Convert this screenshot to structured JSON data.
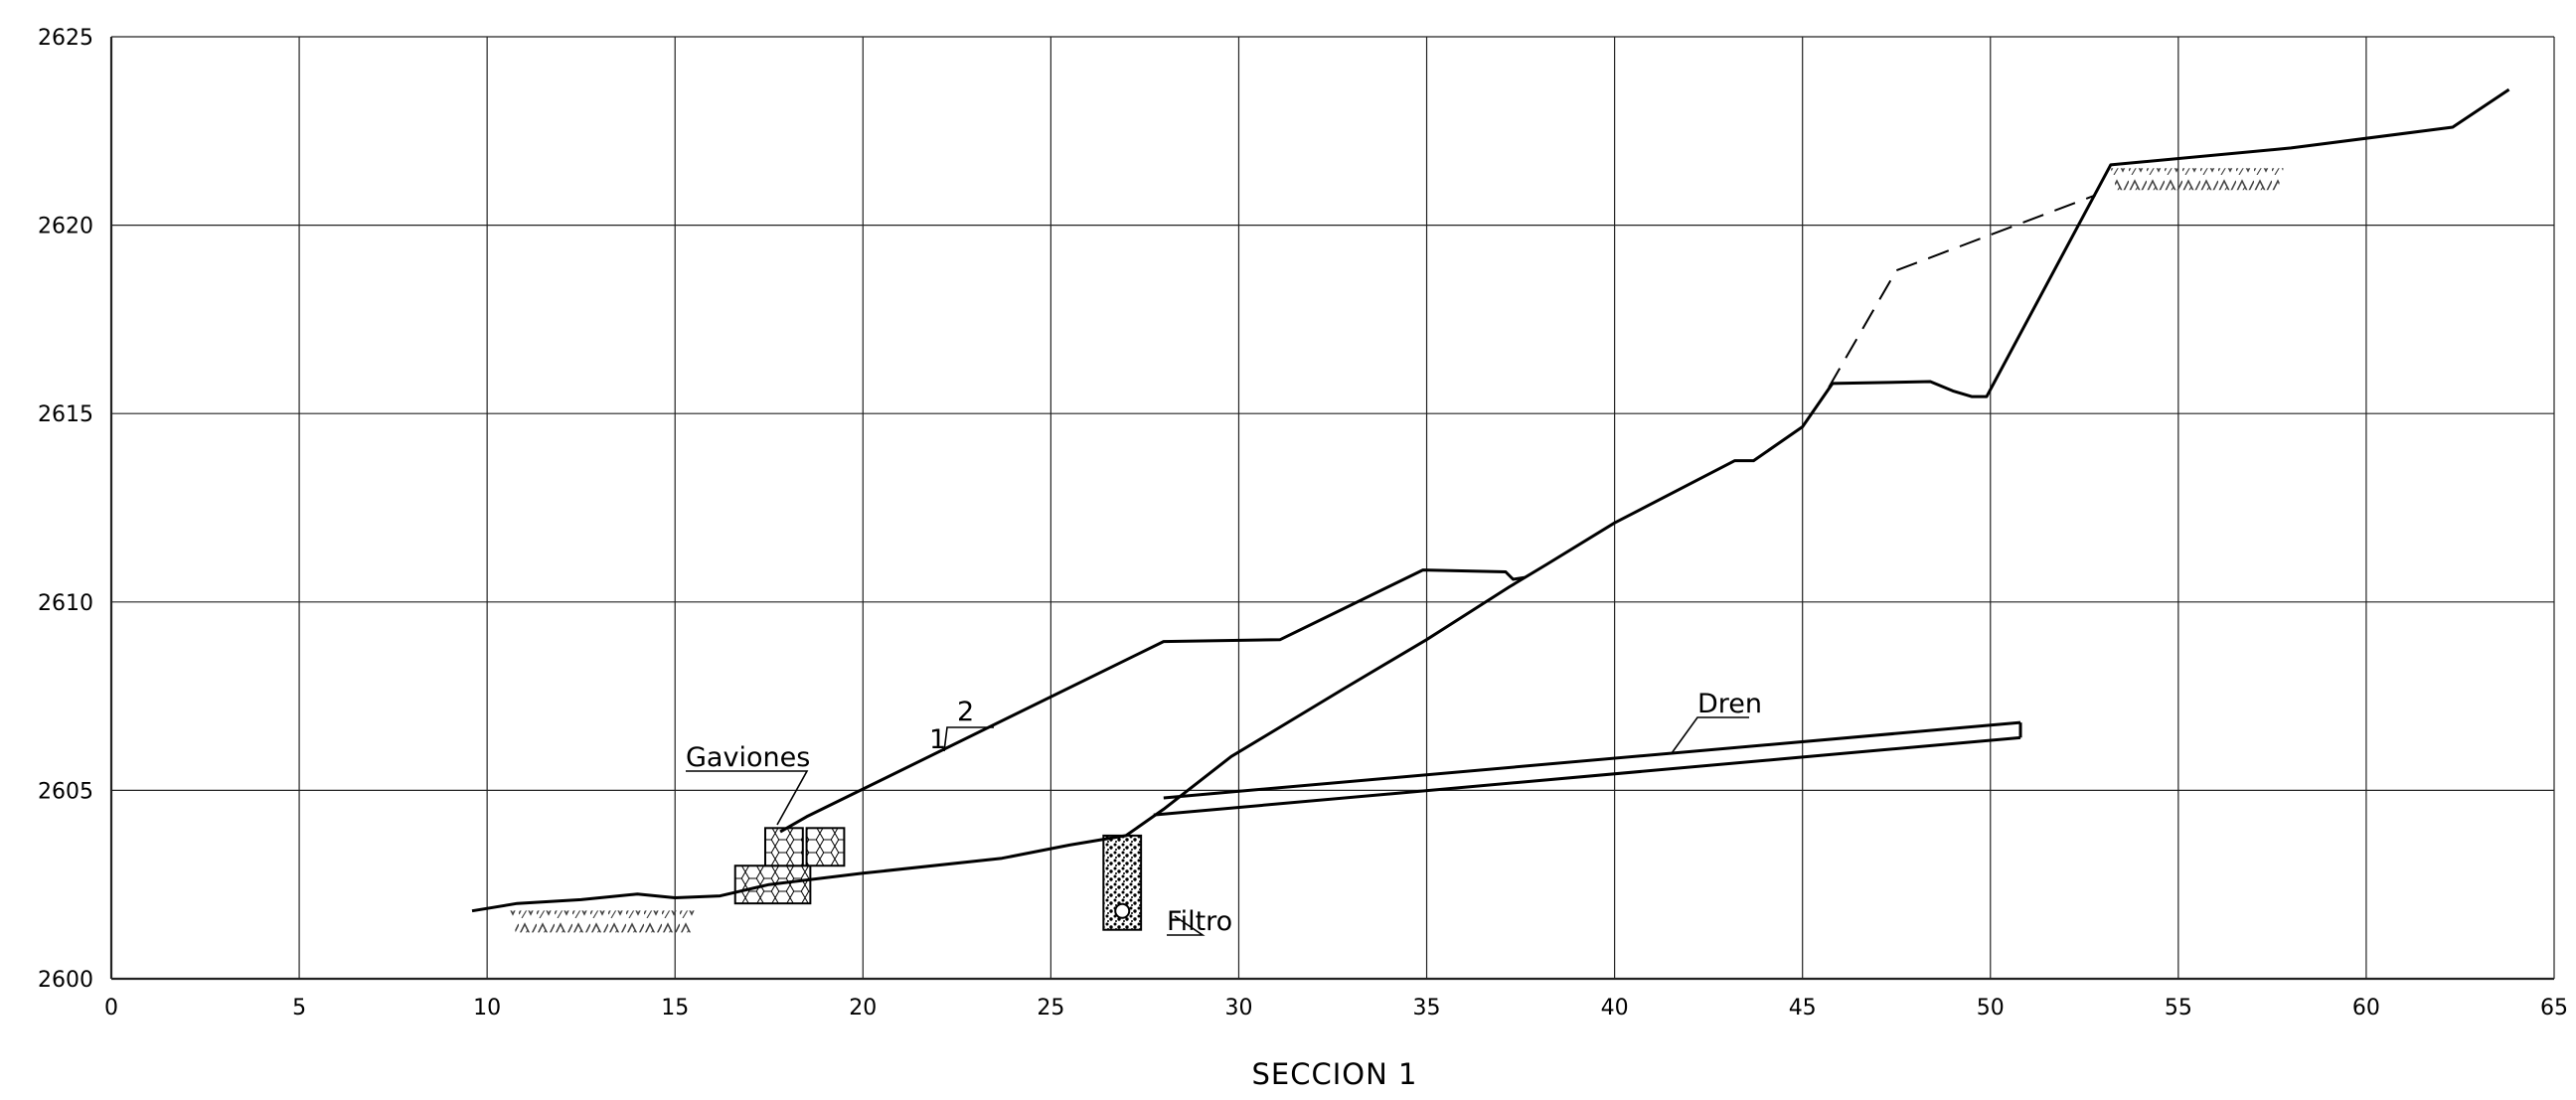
{
  "drawing": {
    "title": "SECCION  1",
    "x_axis": {
      "min": 0,
      "max": 65,
      "step": 5,
      "tick_labels": [
        "0",
        "5",
        "10",
        "15",
        "20",
        "25",
        "30",
        "35",
        "40",
        "45",
        "50",
        "55",
        "60",
        "65"
      ]
    },
    "y_axis": {
      "min": 2600,
      "max": 2625,
      "step": 5,
      "tick_labels": [
        "2600",
        "2605",
        "2610",
        "2615",
        "2620",
        "2625"
      ]
    },
    "grid": true,
    "annotations": {
      "gaviones": "Gaviones",
      "dren": "Dren",
      "filtro": "Filtro",
      "slope_rise": "1",
      "slope_run": "2"
    },
    "profiles": {
      "natural_ground": [
        [
          9.6,
          2601.8
        ],
        [
          10.8,
          2602.0
        ],
        [
          12.5,
          2602.1
        ],
        [
          14.0,
          2602.25
        ],
        [
          15.0,
          2602.15
        ],
        [
          16.2,
          2602.2
        ],
        [
          17.5,
          2602.5
        ],
        [
          20.0,
          2602.8
        ],
        [
          23.7,
          2603.2
        ],
        [
          25.5,
          2603.55
        ],
        [
          27.0,
          2603.8
        ],
        [
          28.0,
          2604.5
        ],
        [
          29.8,
          2605.9
        ],
        [
          32.8,
          2607.7
        ],
        [
          35.0,
          2609.0
        ],
        [
          37.2,
          2610.4
        ],
        [
          38.2,
          2611.0
        ],
        [
          40.0,
          2612.1
        ],
        [
          43.2,
          2613.75
        ],
        [
          43.7,
          2613.75
        ],
        [
          45.0,
          2614.65
        ],
        [
          45.8,
          2615.8
        ],
        [
          48.4,
          2615.85
        ],
        [
          49.0,
          2615.6
        ],
        [
          49.5,
          2615.45
        ],
        [
          49.9,
          2615.45
        ],
        [
          53.2,
          2621.6
        ],
        [
          58.0,
          2622.05
        ],
        [
          62.3,
          2622.6
        ],
        [
          63.8,
          2623.6
        ]
      ],
      "designed_slope": [
        [
          17.8,
          2603.9
        ],
        [
          18.5,
          2604.3
        ],
        [
          28.0,
          2608.95
        ],
        [
          31.1,
          2609.0
        ],
        [
          34.9,
          2610.85
        ],
        [
          37.1,
          2610.8
        ],
        [
          37.3,
          2610.6
        ],
        [
          37.6,
          2610.65
        ]
      ],
      "existing_dashed": [
        [
          45.7,
          2615.7
        ],
        [
          47.5,
          2618.8
        ],
        [
          52.8,
          2620.8
        ]
      ]
    },
    "hatch_zones": [
      {
        "x1": 10.6,
        "y": 2601.6,
        "x2": 15.6
      },
      {
        "x1": 53.2,
        "y": 2621.3,
        "x2": 57.8
      }
    ],
    "dren": {
      "x1": 28.0,
      "y1": 2604.6,
      "x2": 50.8,
      "y2": 2606.6,
      "thickness": 0.2
    },
    "filtro": {
      "x1": 26.4,
      "x2": 27.4,
      "y_top": 2603.8,
      "y_bottom": 2601.3,
      "pipe_x": 26.9,
      "pipe_y": 2601.8
    },
    "gabions": [
      {
        "x1": 16.6,
        "y1": 2602.0,
        "x2": 18.6,
        "y2": 2603.0
      },
      {
        "x1": 17.4,
        "y1": 2603.0,
        "x2": 18.4,
        "y2": 2604.0
      },
      {
        "x1": 18.5,
        "y1": 2603.0,
        "x2": 19.5,
        "y2": 2604.0
      }
    ]
  }
}
